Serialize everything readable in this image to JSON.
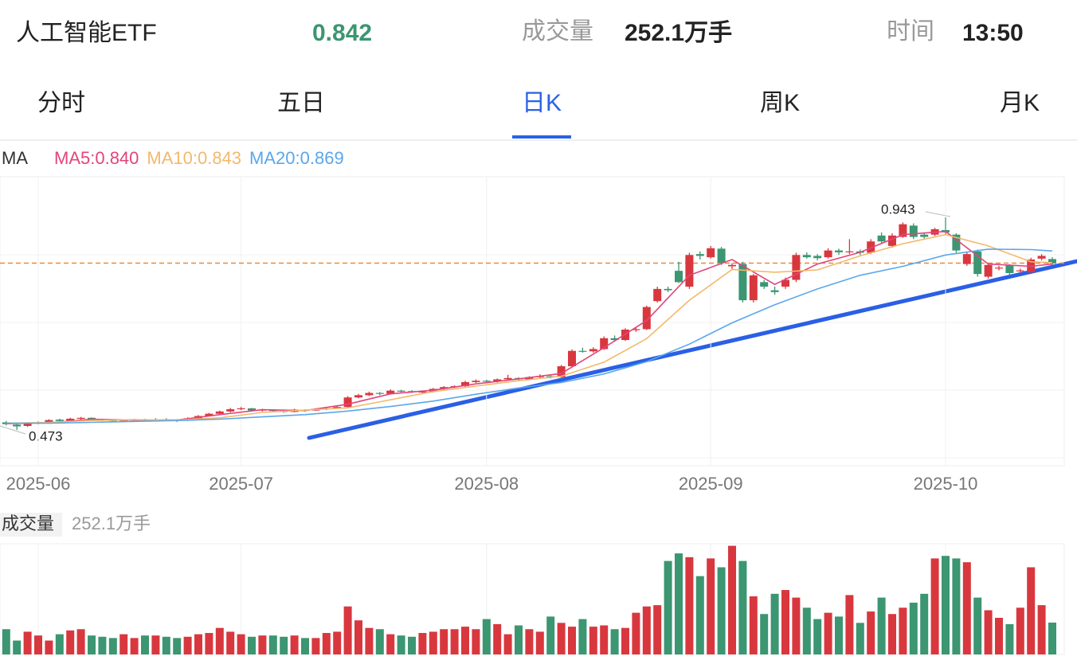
{
  "header": {
    "name": "人工智能ETF",
    "price": 0.842,
    "volume_label": "成交量",
    "volume": "252.1万手",
    "time_label": "时间",
    "time": "13:50"
  },
  "tabs": [
    "分时",
    "五日",
    "日K",
    "周K",
    "月K"
  ],
  "active_tab": "日K",
  "chart_data": {
    "type": "candlestick",
    "legend_title": "MA",
    "categories": [
      null,
      null,
      null,
      "2025-06",
      null,
      null,
      null,
      null,
      null,
      null,
      null,
      null,
      null,
      null,
      null,
      null,
      null,
      null,
      null,
      null,
      null,
      null,
      "2025-07",
      null,
      null,
      null,
      null,
      null,
      null,
      null,
      null,
      null,
      null,
      null,
      null,
      null,
      null,
      null,
      null,
      null,
      null,
      null,
      null,
      null,
      null,
      "2025-08",
      null,
      null,
      null,
      null,
      null,
      null,
      null,
      null,
      null,
      null,
      null,
      null,
      null,
      null,
      null,
      null,
      null,
      null,
      null,
      null,
      "2025-09",
      null,
      null,
      null,
      null,
      null,
      null,
      null,
      null,
      null,
      null,
      null,
      null,
      null,
      null,
      null,
      null,
      null,
      null,
      null,
      null,
      null,
      "2025-10",
      null,
      null,
      null,
      null,
      null,
      null,
      null,
      null,
      null,
      null
    ],
    "ohlc": [
      [
        0.49,
        0.493,
        0.483,
        0.486
      ],
      [
        0.485,
        0.487,
        0.473,
        0.481
      ],
      [
        0.482,
        0.49,
        0.48,
        0.488
      ],
      [
        0.488,
        0.492,
        0.486,
        0.49
      ],
      [
        0.49,
        0.497,
        0.489,
        0.495
      ],
      [
        0.496,
        0.498,
        0.491,
        0.493
      ],
      [
        0.493,
        0.5,
        0.492,
        0.498
      ],
      [
        0.498,
        0.502,
        0.496,
        0.5
      ],
      [
        0.5,
        0.501,
        0.495,
        0.497
      ],
      [
        0.497,
        0.498,
        0.493,
        0.495
      ],
      [
        0.495,
        0.497,
        0.492,
        0.494
      ],
      [
        0.494,
        0.497,
        0.493,
        0.495
      ],
      [
        0.495,
        0.498,
        0.494,
        0.496
      ],
      [
        0.496,
        0.498,
        0.493,
        0.495
      ],
      [
        0.495,
        0.499,
        0.494,
        0.497
      ],
      [
        0.497,
        0.499,
        0.495,
        0.496
      ],
      [
        0.496,
        0.497,
        0.491,
        0.494
      ],
      [
        0.494,
        0.501,
        0.493,
        0.499
      ],
      [
        0.499,
        0.506,
        0.498,
        0.504
      ],
      [
        0.504,
        0.511,
        0.503,
        0.509
      ],
      [
        0.509,
        0.516,
        0.507,
        0.514
      ],
      [
        0.514,
        0.522,
        0.512,
        0.519
      ],
      [
        0.519,
        0.524,
        0.517,
        0.521
      ],
      [
        0.521,
        0.522,
        0.514,
        0.516
      ],
      [
        0.516,
        0.52,
        0.514,
        0.518
      ],
      [
        0.518,
        0.519,
        0.512,
        0.515
      ],
      [
        0.515,
        0.517,
        0.511,
        0.513
      ],
      [
        0.513,
        0.52,
        0.512,
        0.518
      ],
      [
        0.518,
        0.519,
        0.514,
        0.516
      ],
      [
        0.516,
        0.521,
        0.515,
        0.519
      ],
      [
        0.519,
        0.523,
        0.517,
        0.521
      ],
      [
        0.521,
        0.526,
        0.52,
        0.524
      ],
      [
        0.524,
        0.548,
        0.523,
        0.545
      ],
      [
        0.545,
        0.553,
        0.543,
        0.55
      ],
      [
        0.55,
        0.558,
        0.548,
        0.555
      ],
      [
        0.555,
        0.557,
        0.55,
        0.553
      ],
      [
        0.553,
        0.563,
        0.552,
        0.56
      ],
      [
        0.56,
        0.562,
        0.556,
        0.559
      ],
      [
        0.559,
        0.561,
        0.555,
        0.557
      ],
      [
        0.557,
        0.56,
        0.555,
        0.558
      ],
      [
        0.558,
        0.566,
        0.556,
        0.564
      ],
      [
        0.564,
        0.57,
        0.562,
        0.568
      ],
      [
        0.568,
        0.572,
        0.566,
        0.57
      ],
      [
        0.57,
        0.582,
        0.568,
        0.579
      ],
      [
        0.579,
        0.585,
        0.577,
        0.582
      ],
      [
        0.582,
        0.584,
        0.577,
        0.58
      ],
      [
        0.58,
        0.587,
        0.578,
        0.585
      ],
      [
        0.585,
        0.595,
        0.583,
        0.588
      ],
      [
        0.588,
        0.59,
        0.582,
        0.585
      ],
      [
        0.585,
        0.592,
        0.583,
        0.59
      ],
      [
        0.59,
        0.596,
        0.588,
        0.592
      ],
      [
        0.592,
        0.594,
        0.587,
        0.59
      ],
      [
        0.59,
        0.617,
        0.589,
        0.614
      ],
      [
        0.614,
        0.651,
        0.612,
        0.648
      ],
      [
        0.648,
        0.655,
        0.644,
        0.647
      ],
      [
        0.647,
        0.656,
        0.644,
        0.652
      ],
      [
        0.652,
        0.68,
        0.65,
        0.676
      ],
      [
        0.676,
        0.682,
        0.668,
        0.672
      ],
      [
        0.672,
        0.698,
        0.67,
        0.695
      ],
      [
        0.695,
        0.7,
        0.69,
        0.696
      ],
      [
        0.696,
        0.748,
        0.694,
        0.745
      ],
      [
        0.758,
        0.79,
        0.755,
        0.785
      ],
      [
        0.785,
        0.79,
        0.778,
        0.782
      ],
      [
        0.825,
        0.845,
        0.798,
        0.8
      ],
      [
        0.79,
        0.865,
        0.785,
        0.86
      ],
      [
        0.862,
        0.868,
        0.85,
        0.858
      ],
      [
        0.855,
        0.88,
        0.852,
        0.875
      ],
      [
        0.874,
        0.878,
        0.838,
        0.843
      ],
      [
        0.835,
        0.842,
        0.828,
        0.838
      ],
      [
        0.84,
        0.845,
        0.755,
        0.76
      ],
      [
        0.76,
        0.818,
        0.755,
        0.815
      ],
      [
        0.8,
        0.805,
        0.785,
        0.79
      ],
      [
        0.782,
        0.79,
        0.772,
        0.778
      ],
      [
        0.79,
        0.81,
        0.785,
        0.805
      ],
      [
        0.805,
        0.865,
        0.8,
        0.86
      ],
      [
        0.86,
        0.866,
        0.852,
        0.855
      ],
      [
        0.858,
        0.862,
        0.848,
        0.853
      ],
      [
        0.855,
        0.875,
        0.852,
        0.87
      ],
      [
        0.87,
        0.874,
        0.86,
        0.866
      ],
      [
        0.866,
        0.895,
        0.862,
        0.868
      ],
      [
        0.868,
        0.872,
        0.86,
        0.865
      ],
      [
        0.865,
        0.895,
        0.862,
        0.89
      ],
      [
        0.903,
        0.91,
        0.885,
        0.89
      ],
      [
        0.88,
        0.908,
        0.876,
        0.903
      ],
      [
        0.9,
        0.932,
        0.898,
        0.928
      ],
      [
        0.925,
        0.93,
        0.895,
        0.9
      ],
      [
        0.905,
        0.91,
        0.896,
        0.9
      ],
      [
        0.905,
        0.92,
        0.902,
        0.917
      ],
      [
        0.915,
        0.943,
        0.906,
        0.91
      ],
      [
        0.905,
        0.908,
        0.865,
        0.87
      ],
      [
        0.84,
        0.866,
        0.836,
        0.862
      ],
      [
        0.868,
        0.872,
        0.812,
        0.818
      ],
      [
        0.812,
        0.842,
        0.808,
        0.838
      ],
      [
        0.83,
        0.836,
        0.826,
        0.832
      ],
      [
        0.838,
        0.84,
        0.816,
        0.82
      ],
      [
        0.825,
        0.83,
        0.82,
        0.826
      ],
      [
        0.822,
        0.854,
        0.818,
        0.85
      ],
      [
        0.852,
        0.862,
        0.848,
        0.858
      ],
      [
        0.851,
        0.855,
        0.838,
        0.842
      ]
    ],
    "up_color": "#d9373e",
    "down_color": "#3b9671",
    "ylim": [
      0.394,
      1.033
    ],
    "max_label": 0.943,
    "min_label": 0.473,
    "ma": [
      {
        "name": "MA5",
        "label": "MA5:0.840",
        "color": "#e2457c",
        "x": [
          0,
          4,
          8,
          12,
          16,
          20,
          24,
          28,
          32,
          36,
          40,
          44,
          48,
          52,
          56,
          60,
          64,
          68,
          72,
          76,
          80,
          84,
          88,
          92,
          96,
          98
        ],
        "values": [
          0.487,
          0.489,
          0.497,
          0.495,
          0.495,
          0.507,
          0.518,
          0.516,
          0.53,
          0.553,
          0.561,
          0.575,
          0.586,
          0.598,
          0.655,
          0.715,
          0.815,
          0.85,
          0.795,
          0.84,
          0.866,
          0.905,
          0.912,
          0.84,
          0.835,
          0.84
        ]
      },
      {
        "name": "MA10",
        "label": "MA10:0.843",
        "color": "#f3b86c",
        "x": [
          0,
          4,
          8,
          12,
          16,
          20,
          24,
          28,
          32,
          36,
          40,
          44,
          48,
          52,
          56,
          60,
          64,
          68,
          72,
          76,
          80,
          84,
          88,
          92,
          96,
          98
        ],
        "values": [
          0.488,
          0.49,
          0.494,
          0.496,
          0.495,
          0.5,
          0.512,
          0.517,
          0.522,
          0.54,
          0.558,
          0.57,
          0.582,
          0.592,
          0.623,
          0.675,
          0.76,
          0.828,
          0.822,
          0.827,
          0.858,
          0.885,
          0.905,
          0.88,
          0.845,
          0.843
        ]
      },
      {
        "name": "MA20",
        "label": "MA20:0.869",
        "color": "#5aa7ea",
        "x": [
          0,
          4,
          8,
          12,
          16,
          20,
          24,
          28,
          32,
          36,
          40,
          44,
          48,
          52,
          56,
          60,
          64,
          68,
          72,
          76,
          80,
          84,
          88,
          92,
          96,
          98
        ],
        "values": [
          0.488,
          0.488,
          0.49,
          0.492,
          0.494,
          0.497,
          0.502,
          0.507,
          0.515,
          0.525,
          0.537,
          0.552,
          0.566,
          0.578,
          0.597,
          0.624,
          0.663,
          0.71,
          0.75,
          0.785,
          0.815,
          0.835,
          0.86,
          0.873,
          0.872,
          0.869
        ]
      }
    ],
    "volume": {
      "title": "成交量",
      "label": "252.1万手",
      "ylim": [
        0,
        876
      ],
      "values": [
        200,
        110,
        180,
        150,
        110,
        160,
        190,
        200,
        150,
        140,
        130,
        160,
        130,
        150,
        150,
        140,
        130,
        140,
        160,
        170,
        210,
        180,
        160,
        140,
        150,
        150,
        140,
        150,
        130,
        130,
        170,
        180,
        380,
        270,
        210,
        200,
        160,
        150,
        140,
        170,
        180,
        200,
        200,
        220,
        200,
        280,
        240,
        160,
        230,
        200,
        180,
        300,
        250,
        220,
        280,
        220,
        230,
        200,
        210,
        330,
        380,
        390,
        740,
        800,
        770,
        620,
        760,
        690,
        860,
        740,
        460,
        320,
        480,
        510,
        450,
        370,
        280,
        330,
        300,
        470,
        250,
        340,
        450,
        320,
        370,
        410,
        480,
        760,
        780,
        760,
        730,
        450,
        350,
        290,
        240,
        370,
        690,
        390,
        252.1
      ]
    }
  }
}
